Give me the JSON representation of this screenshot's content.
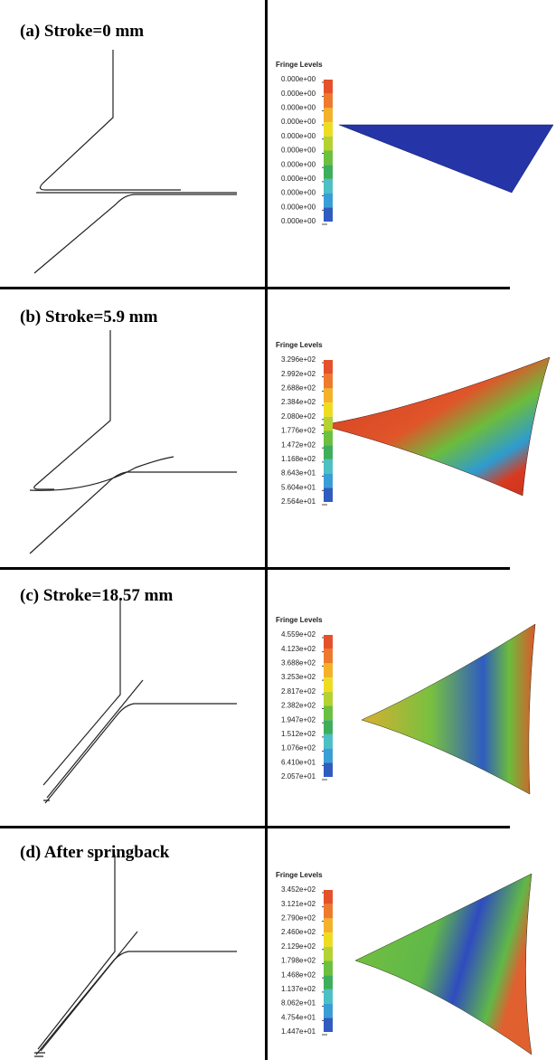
{
  "panels": [
    {
      "title": "(a) Stroke=0 mm",
      "legend_title": "Fringe Levels",
      "levels": [
        "0.000e+00",
        "0.000e+00",
        "0.000e+00",
        "0.000e+00",
        "0.000e+00",
        "0.000e+00",
        "0.000e+00",
        "0.000e+00",
        "0.000e+00",
        "0.000e+00",
        "0.000e+00"
      ]
    },
    {
      "title": "(b) Stroke=5.9 mm",
      "legend_title": "Fringe Levels",
      "levels": [
        "3.296e+02",
        "2.992e+02",
        "2.688e+02",
        "2.384e+02",
        "2.080e+02",
        "1.776e+02",
        "1.472e+02",
        "1.168e+02",
        "8.643e+01",
        "5.604e+01",
        "2.564e+01"
      ]
    },
    {
      "title": "(c) Stroke=18.57 mm",
      "legend_title": "Fringe Levels",
      "levels": [
        "4.559e+02",
        "4.123e+02",
        "3.688e+02",
        "3.253e+02",
        "2.817e+02",
        "2.382e+02",
        "1.947e+02",
        "1.512e+02",
        "1.076e+02",
        "6.410e+01",
        "2.057e+01"
      ]
    },
    {
      "title": "(d) After springback",
      "legend_title": "Fringe Levels",
      "levels": [
        "3.452e+02",
        "3.121e+02",
        "2.790e+02",
        "2.460e+02",
        "2.129e+02",
        "1.798e+02",
        "1.468e+02",
        "1.137e+02",
        "8.062e+01",
        "4.754e+01",
        "1.447e+01"
      ]
    }
  ]
}
